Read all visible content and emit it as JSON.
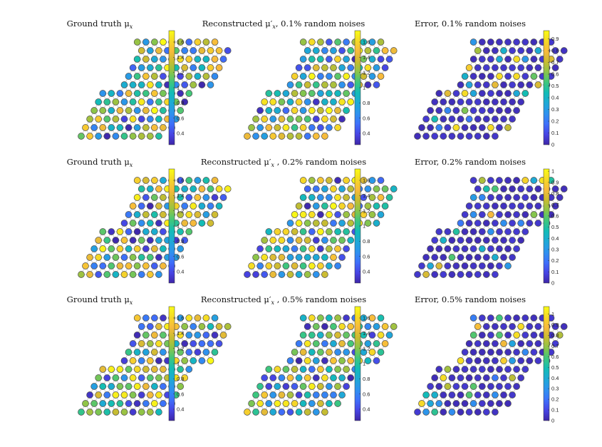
{
  "colormap": [
    "#3e26a8",
    "#4744e4",
    "#3e70fa",
    "#2e92ee",
    "#1ea9d6",
    "#12bcb7",
    "#3dc67e",
    "#8ac54a",
    "#c8bc31",
    "#f7ba3c",
    "#f5d927",
    "#f9fb15"
  ],
  "node_edge_color": "#4d4d4d",
  "grid_edge_color": "#b3b3b3",
  "chart_data": [
    {
      "type": "heatmap",
      "title": "Ground truth μ",
      "title_subscript": "x",
      "title_suffix": "",
      "colorbar": {
        "ticks": [
          "0.4",
          "0.6",
          "0.8",
          "1",
          "1.2",
          "1.4",
          "1.6"
        ],
        "tick_values": [
          0.4,
          0.6,
          0.8,
          1.0,
          1.2,
          1.4,
          1.6
        ],
        "range": [
          0.25,
          1.75
        ]
      }
    },
    {
      "type": "heatmap",
      "title": "Reconstructed μ′",
      "title_subscript": "x",
      "title_suffix": ", 0.1% random noises",
      "colorbar": {
        "ticks": [
          "0.4",
          "0.6",
          "0.8",
          "1",
          "1.2",
          "1.4",
          "1.6"
        ],
        "tick_values": [
          0.4,
          0.6,
          0.8,
          1.0,
          1.2,
          1.4,
          1.6
        ],
        "range": [
          0.25,
          1.75
        ]
      }
    },
    {
      "type": "heatmap",
      "title": "Error, 0.1% random noises",
      "title_subscript": "",
      "title_suffix": "",
      "colorbar": {
        "ticks": [
          "0",
          "0.1",
          "0.2",
          "0.3",
          "0.4",
          "0.5",
          "0.6",
          "0.7",
          "0.8",
          "0.9"
        ],
        "tick_values": [
          0,
          0.1,
          0.2,
          0.3,
          0.4,
          0.5,
          0.6,
          0.7,
          0.8,
          0.9
        ],
        "range": [
          0,
          0.97
        ]
      }
    },
    {
      "type": "heatmap",
      "title": "Ground truth μ",
      "title_subscript": "x",
      "title_suffix": "",
      "colorbar": {
        "ticks": [
          "0.4",
          "0.6",
          "0.8",
          "1",
          "1.2",
          "1.4",
          "1.6"
        ],
        "tick_values": [
          0.4,
          0.6,
          0.8,
          1.0,
          1.2,
          1.4,
          1.6
        ],
        "range": [
          0.25,
          1.75
        ]
      }
    },
    {
      "type": "heatmap",
      "title": "Reconstructed μ′",
      "title_subscript": "x",
      "title_suffix": " , 0.2% random noises",
      "colorbar": {
        "ticks": [
          "0.4",
          "0.6",
          "0.8",
          "1",
          "1.2",
          "1.4",
          "1.6"
        ],
        "tick_values": [
          0.4,
          0.6,
          0.8,
          1.0,
          1.2,
          1.4,
          1.6
        ],
        "range": [
          0.25,
          1.75
        ]
      }
    },
    {
      "type": "heatmap",
      "title": "Error, 0.2% random noises",
      "title_subscript": "",
      "title_suffix": "",
      "colorbar": {
        "ticks": [
          "0",
          "0.1",
          "0.2",
          "0.3",
          "0.4",
          "0.5",
          "0.6",
          "0.7",
          "0.8",
          "0.9",
          "1"
        ],
        "tick_values": [
          0,
          0.1,
          0.2,
          0.3,
          0.4,
          0.5,
          0.6,
          0.7,
          0.8,
          0.9,
          1.0
        ],
        "range": [
          0,
          1.02
        ]
      }
    },
    {
      "type": "heatmap",
      "title": "Ground truth μ",
      "title_subscript": "x",
      "title_suffix": "",
      "colorbar": {
        "ticks": [
          "0.4",
          "0.6",
          "0.8",
          "1",
          "1.2",
          "1.4",
          "1.6"
        ],
        "tick_values": [
          0.4,
          0.6,
          0.8,
          1.0,
          1.2,
          1.4,
          1.6
        ],
        "range": [
          0.25,
          1.75
        ]
      }
    },
    {
      "type": "heatmap",
      "title": "Reconstructed μ′",
      "title_subscript": "x",
      "title_suffix": " , 0.5% random noises",
      "colorbar": {
        "ticks": [
          "0.4",
          "0.6",
          "0.8",
          "1",
          "1.2",
          "1.4",
          "1.6"
        ],
        "tick_values": [
          0.4,
          0.6,
          0.8,
          1.0,
          1.2,
          1.4,
          1.6
        ],
        "range": [
          0.25,
          1.75
        ]
      }
    },
    {
      "type": "heatmap",
      "title": "Error, 0.5% random noises",
      "title_subscript": "",
      "title_suffix": "",
      "colorbar": {
        "ticks": [
          "0",
          "0.1",
          "0.2",
          "0.3",
          "0.4",
          "0.5",
          "0.6",
          "0.7",
          "0.8",
          "0.9",
          "1"
        ],
        "tick_values": [
          0,
          0.1,
          0.2,
          0.3,
          0.4,
          0.5,
          0.6,
          0.7,
          0.8,
          0.9,
          1.0
        ],
        "range": [
          0,
          1.07
        ]
      }
    }
  ]
}
